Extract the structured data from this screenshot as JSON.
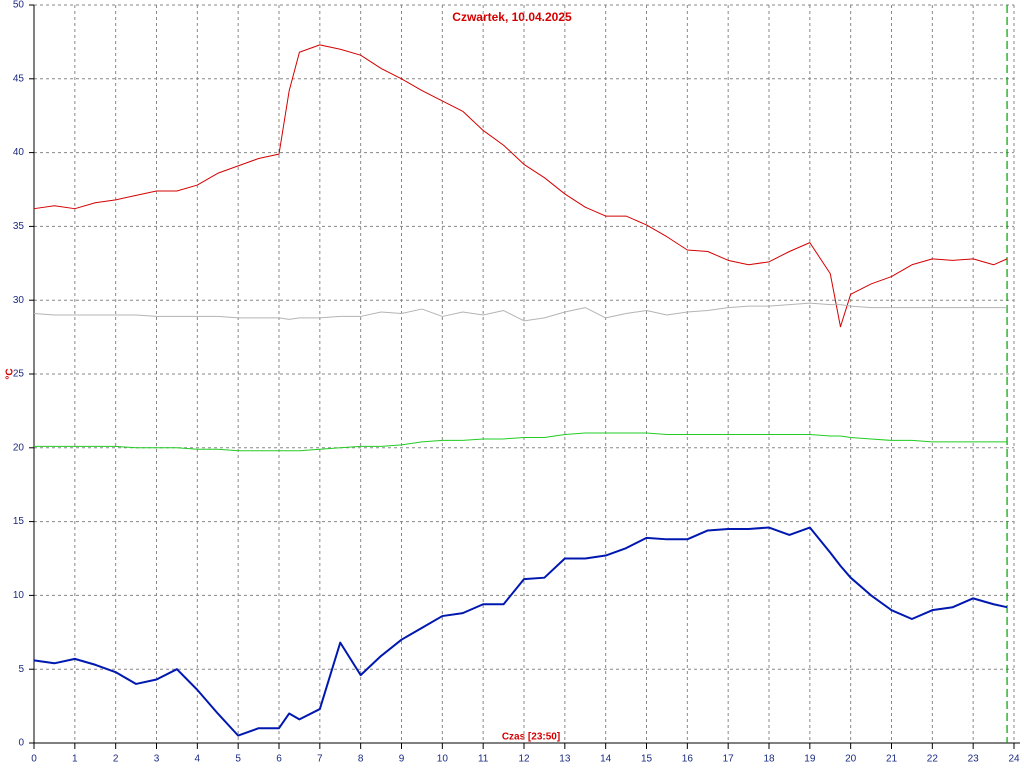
{
  "chart_data": {
    "type": "line",
    "title": "Czwartek, 10.04.2025",
    "ylabel": "°C",
    "xlabel": "Czas [23:50]",
    "x": [
      0,
      0.5,
      1,
      1.5,
      2,
      2.5,
      3,
      3.5,
      4,
      4.5,
      5,
      5.5,
      6,
      6.25,
      6.5,
      7,
      7.5,
      8,
      8.5,
      9,
      9.5,
      10,
      10.5,
      11,
      11.5,
      12,
      12.5,
      13,
      13.5,
      14,
      14.5,
      15,
      15.5,
      16,
      16.5,
      17,
      17.5,
      18,
      18.5,
      19,
      19.5,
      19.75,
      20,
      20.5,
      21,
      21.5,
      22,
      22.5,
      23,
      23.5,
      23.83
    ],
    "series": [
      {
        "color": "#d40000",
        "width": 1,
        "values": [
          36.2,
          36.4,
          36.2,
          36.6,
          36.8,
          37.1,
          37.4,
          37.4,
          37.8,
          38.6,
          39.1,
          39.6,
          39.9,
          44.2,
          46.8,
          47.3,
          47.0,
          46.6,
          45.7,
          45.0,
          44.2,
          43.5,
          42.8,
          41.5,
          40.5,
          39.2,
          38.3,
          37.2,
          36.3,
          35.7,
          35.7,
          35.1,
          34.3,
          33.4,
          33.3,
          32.7,
          32.4,
          32.6,
          33.3,
          33.9,
          31.8,
          28.2,
          30.4,
          31.1,
          31.6,
          32.4,
          32.8,
          32.7,
          32.8,
          32.4,
          32.8
        ]
      },
      {
        "color": "#b4b4b4",
        "width": 1,
        "values": [
          29.1,
          29.0,
          29.0,
          29.0,
          29.0,
          29.0,
          28.9,
          28.9,
          28.9,
          28.9,
          28.8,
          28.8,
          28.8,
          28.7,
          28.8,
          28.8,
          28.9,
          28.9,
          29.2,
          29.1,
          29.4,
          28.9,
          29.2,
          29.0,
          29.3,
          28.6,
          28.8,
          29.2,
          29.5,
          28.8,
          29.1,
          29.3,
          29.0,
          29.2,
          29.3,
          29.5,
          29.6,
          29.6,
          29.7,
          29.8,
          29.7,
          29.7,
          29.6,
          29.5,
          29.5,
          29.5,
          29.5,
          29.5,
          29.5,
          29.5,
          29.5
        ]
      },
      {
        "color": "#22cc22",
        "width": 1,
        "values": [
          20.1,
          20.1,
          20.1,
          20.1,
          20.1,
          20.0,
          20.0,
          20.0,
          19.9,
          19.9,
          19.8,
          19.8,
          19.8,
          19.8,
          19.8,
          19.9,
          20.0,
          20.1,
          20.1,
          20.2,
          20.4,
          20.5,
          20.5,
          20.6,
          20.6,
          20.7,
          20.7,
          20.9,
          21.0,
          21.0,
          21.0,
          21.0,
          20.9,
          20.9,
          20.9,
          20.9,
          20.9,
          20.9,
          20.9,
          20.9,
          20.8,
          20.8,
          20.7,
          20.6,
          20.5,
          20.5,
          20.4,
          20.4,
          20.4,
          20.4,
          20.4
        ]
      },
      {
        "color": "#0018b0",
        "width": 2,
        "values": [
          5.6,
          5.4,
          5.7,
          5.3,
          4.8,
          4.0,
          4.3,
          5.0,
          3.6,
          2.0,
          0.5,
          1.0,
          1.0,
          2.0,
          1.6,
          2.3,
          6.8,
          4.6,
          5.9,
          7.0,
          7.8,
          8.6,
          8.8,
          9.4,
          9.4,
          11.1,
          11.2,
          12.5,
          12.5,
          12.7,
          13.2,
          13.9,
          13.8,
          13.8,
          14.4,
          14.5,
          14.5,
          14.6,
          14.1,
          14.6,
          12.9,
          12.0,
          11.2,
          10.0,
          9.0,
          8.4,
          9.0,
          9.2,
          9.8,
          9.4,
          9.2
        ]
      }
    ],
    "now_x": 23.83,
    "xlim": [
      0,
      24
    ],
    "xticks": [
      0,
      1,
      2,
      3,
      4,
      5,
      6,
      7,
      8,
      9,
      10,
      11,
      12,
      13,
      14,
      15,
      16,
      17,
      18,
      19,
      20,
      21,
      22,
      23,
      24
    ],
    "ylim": [
      0,
      50
    ],
    "yticks": [
      0,
      5,
      10,
      15,
      20,
      25,
      30,
      35,
      40,
      45,
      50
    ],
    "grid": true
  }
}
